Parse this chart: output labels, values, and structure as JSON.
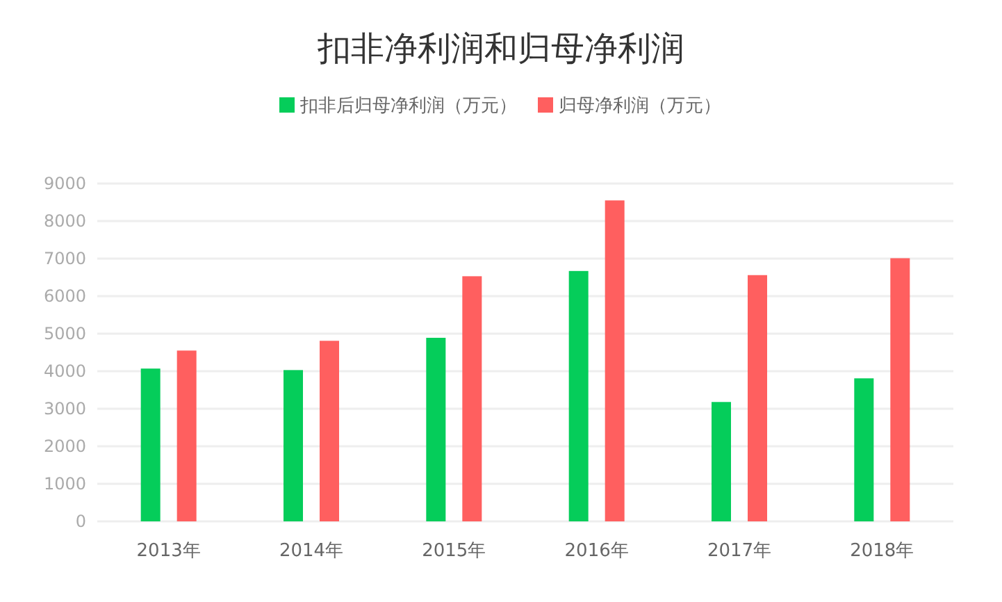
{
  "chart_data": {
    "type": "bar",
    "title": "扣非净利润和归母净利润",
    "categories": [
      "2013年",
      "2014年",
      "2015年",
      "2016年",
      "2017年",
      "2018年"
    ],
    "series": [
      {
        "name": "扣非后归母净利润（万元）",
        "color": "#05cd5a",
        "values": [
          4070,
          4030,
          4890,
          6670,
          3180,
          3810
        ]
      },
      {
        "name": "归母净利润（万元）",
        "color": "#ff5f5f",
        "values": [
          4550,
          4810,
          6530,
          8550,
          6560,
          7010
        ]
      }
    ],
    "ylim": [
      0,
      9000
    ],
    "yticks": [
      0,
      1000,
      2000,
      3000,
      4000,
      5000,
      6000,
      7000,
      8000,
      9000
    ],
    "grid": "y",
    "legend": "top"
  }
}
